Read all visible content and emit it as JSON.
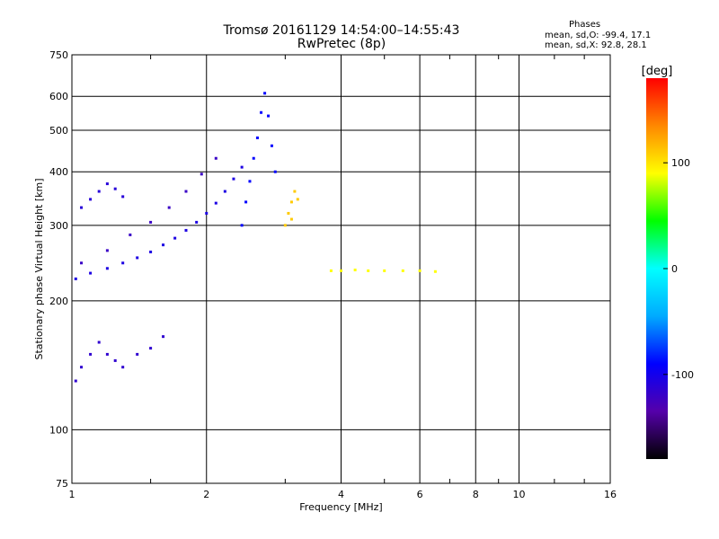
{
  "chart_data": {
    "type": "scatter",
    "title": "Tromsø 20161129 14:54:00–14:55:43",
    "subtitle": "RwPretec (8p)",
    "xlabel": "Frequency [MHz]",
    "ylabel": "Stationary phase Virtual Height [km]",
    "x_scale": "log",
    "y_scale": "log",
    "xlim": [
      1,
      16
    ],
    "ylim": [
      75,
      750
    ],
    "x_ticks": [
      1,
      2,
      4,
      6,
      8,
      10,
      16
    ],
    "y_ticks": [
      75,
      100,
      200,
      300,
      400,
      500,
      600,
      750
    ],
    "grid": true,
    "stats": {
      "heading": "Phases",
      "line_o": "mean, sd,O: -99.4, 17.1",
      "line_x": "mean, sd,X:  92.8, 28.1"
    },
    "colorbar": {
      "label": "[deg]",
      "min": -180,
      "max": 180,
      "ticks": [
        100,
        0,
        -100
      ],
      "colors": [
        "#000000",
        "#5500aa",
        "#0000ff",
        "#00aaff",
        "#00ffff",
        "#00ff00",
        "#ffff00",
        "#ff8800",
        "#ff0000"
      ]
    },
    "series": [
      {
        "description": "O-trace lower band",
        "phase": -105,
        "points": [
          [
            1.02,
            225
          ],
          [
            1.1,
            232
          ],
          [
            1.2,
            238
          ],
          [
            1.3,
            245
          ],
          [
            1.4,
            252
          ],
          [
            1.5,
            260
          ],
          [
            1.6,
            270
          ],
          [
            1.7,
            280
          ],
          [
            1.8,
            292
          ],
          [
            1.9,
            305
          ],
          [
            2.0,
            320
          ],
          [
            2.1,
            338
          ],
          [
            2.2,
            360
          ],
          [
            2.3,
            385
          ],
          [
            2.4,
            410
          ]
        ]
      },
      {
        "description": "O-trace upper edge",
        "phase": -120,
        "points": [
          [
            1.05,
            245
          ],
          [
            1.2,
            262
          ],
          [
            1.35,
            285
          ],
          [
            1.5,
            305
          ],
          [
            1.65,
            330
          ],
          [
            1.8,
            360
          ],
          [
            1.95,
            395
          ],
          [
            2.1,
            430
          ]
        ]
      },
      {
        "description": "F2 cluster near 2.5 MHz",
        "phase": -90,
        "points": [
          [
            2.4,
            300
          ],
          [
            2.45,
            340
          ],
          [
            2.5,
            380
          ],
          [
            2.55,
            430
          ],
          [
            2.6,
            480
          ],
          [
            2.65,
            550
          ],
          [
            2.7,
            610
          ],
          [
            2.75,
            540
          ],
          [
            2.8,
            460
          ],
          [
            2.85,
            400
          ]
        ]
      },
      {
        "description": "X-trace yellow cluster",
        "phase": 110,
        "points": [
          [
            3.0,
            300
          ],
          [
            3.05,
            320
          ],
          [
            3.1,
            340
          ],
          [
            3.15,
            360
          ],
          [
            3.2,
            345
          ],
          [
            3.1,
            310
          ]
        ]
      },
      {
        "description": "Horizontal echoes ~235 km",
        "phase": 90,
        "points": [
          [
            3.8,
            235
          ],
          [
            4.0,
            235
          ],
          [
            4.3,
            236
          ],
          [
            4.6,
            235
          ],
          [
            5.0,
            235
          ],
          [
            5.5,
            235
          ],
          [
            6.0,
            235
          ],
          [
            6.5,
            234
          ]
        ]
      },
      {
        "description": "Upper-left cluster ~350 km",
        "phase": -110,
        "points": [
          [
            1.05,
            330
          ],
          [
            1.1,
            345
          ],
          [
            1.15,
            360
          ],
          [
            1.2,
            375
          ],
          [
            1.25,
            365
          ],
          [
            1.3,
            350
          ]
        ]
      },
      {
        "description": "Lower-left cluster ~150 km",
        "phase": -115,
        "points": [
          [
            1.02,
            130
          ],
          [
            1.05,
            140
          ],
          [
            1.1,
            150
          ],
          [
            1.15,
            160
          ],
          [
            1.2,
            150
          ],
          [
            1.25,
            145
          ],
          [
            1.3,
            140
          ],
          [
            1.4,
            150
          ],
          [
            1.5,
            155
          ],
          [
            1.6,
            165
          ]
        ]
      }
    ]
  }
}
